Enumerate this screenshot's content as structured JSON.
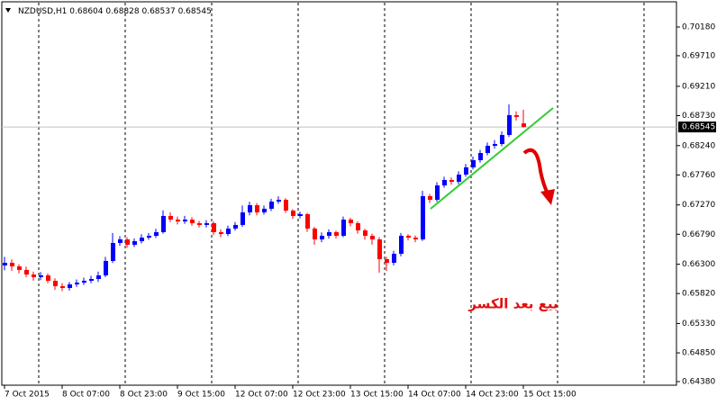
{
  "chart_data": {
    "type": "candlestick",
    "symbol": "NZDUSD,H1",
    "annotation": "بيع بعد الكسر",
    "up_color": "#0000ff",
    "down_color": "#ff0000",
    "grid": true,
    "ylim": [
      0.64321,
      0.70548
    ],
    "yticks": [
      {
        "value": 0.7018,
        "label": "0.70180"
      },
      {
        "value": 0.6971,
        "label": "0.69710"
      },
      {
        "value": 0.6921,
        "label": "0.69210"
      },
      {
        "value": 0.6873,
        "label": "0.68730"
      },
      {
        "value": 0.6824,
        "label": "0.68240"
      },
      {
        "value": 0.6776,
        "label": "0.67760"
      },
      {
        "value": 0.6727,
        "label": "0.67270"
      },
      {
        "value": 0.6679,
        "label": "0.66790"
      },
      {
        "value": 0.663,
        "label": "0.66300"
      },
      {
        "value": 0.6582,
        "label": "0.65820"
      },
      {
        "value": 0.6533,
        "label": "0.65330"
      },
      {
        "value": 0.6485,
        "label": "0.64850"
      },
      {
        "value": 0.6438,
        "label": "0.64380"
      }
    ],
    "categories": [
      "7 Oct 2015",
      null,
      null,
      null,
      null,
      null,
      null,
      null,
      "8 Oct 07:00",
      null,
      null,
      null,
      null,
      null,
      null,
      null,
      "8 Oct 23:00",
      null,
      null,
      null,
      null,
      null,
      null,
      null,
      "9 Oct 15:00",
      null,
      null,
      null,
      null,
      null,
      null,
      null,
      "12 Oct 07:00",
      null,
      null,
      null,
      null,
      null,
      null,
      null,
      "12 Oct 23:00",
      null,
      null,
      null,
      null,
      null,
      null,
      null,
      "13 Oct 15:00",
      null,
      null,
      null,
      null,
      null,
      null,
      null,
      "14 Oct 07:00",
      null,
      null,
      null,
      null,
      null,
      null,
      null,
      "14 Oct 23:00",
      null,
      null,
      null,
      null,
      null,
      null,
      null,
      "15 Oct 15:00"
    ],
    "open": [
      0.6628,
      0.66323,
      0.66265,
      0.66206,
      0.66132,
      0.66088,
      0.66117,
      0.66029,
      0.65941,
      0.65911,
      0.6597,
      0.65999,
      0.66029,
      0.66058,
      0.66117,
      0.66353,
      0.66647,
      0.66706,
      0.66618,
      0.66677,
      0.66735,
      0.66765,
      0.66824,
      0.67089,
      0.6703,
      0.67,
      0.6703,
      0.66971,
      0.66942,
      0.66971,
      0.66824,
      0.66794,
      0.66883,
      0.66942,
      0.67148,
      0.67265,
      0.67148,
      0.67207,
      0.67324,
      0.67354,
      0.67177,
      0.67089,
      0.67118,
      0.66883,
      0.66706,
      0.66765,
      0.66824,
      0.66765,
      0.6703,
      0.66971,
      0.66853,
      0.66765,
      0.66706,
      0.66382,
      0.66323,
      0.66471,
      0.66765,
      0.66735,
      0.66706,
      0.67413,
      0.67354,
      0.67589,
      0.67678,
      0.67648,
      0.67766,
      0.67884,
      0.68001,
      0.68119,
      0.68237,
      0.68266,
      0.68414,
      0.68737,
      0.68604
    ],
    "high": [
      0.6642,
      0.6638,
      0.663,
      0.6626,
      0.6618,
      0.6617,
      0.6615,
      0.6607,
      0.6599,
      0.6601,
      0.6605,
      0.6608,
      0.6611,
      0.6618,
      0.6642,
      0.6681,
      0.6676,
      0.6674,
      0.6672,
      0.6679,
      0.6681,
      0.6688,
      0.6718,
      0.6715,
      0.6708,
      0.6709,
      0.6707,
      0.6701,
      0.6702,
      0.67,
      0.6687,
      0.6693,
      0.6699,
      0.6726,
      0.6732,
      0.673,
      0.6726,
      0.6737,
      0.6741,
      0.6738,
      0.672,
      0.6716,
      0.6714,
      0.6691,
      0.6682,
      0.6687,
      0.6685,
      0.6708,
      0.6706,
      0.67,
      0.6688,
      0.668,
      0.6674,
      0.6642,
      0.6652,
      0.6681,
      0.6679,
      0.6677,
      0.675,
      0.6745,
      0.6764,
      0.6773,
      0.6772,
      0.6782,
      0.6794,
      0.6806,
      0.6817,
      0.6829,
      0.6833,
      0.6847,
      0.68914,
      0.688,
      0.68828
    ],
    "low": [
      0.662,
      0.6619,
      0.6615,
      0.6609,
      0.6603,
      0.6604,
      0.6599,
      0.6588,
      0.6586,
      0.6587,
      0.6593,
      0.6596,
      0.6599,
      0.6601,
      0.6609,
      0.6632,
      0.666,
      0.6657,
      0.6658,
      0.6664,
      0.667,
      0.6673,
      0.668,
      0.6699,
      0.6695,
      0.6696,
      0.6693,
      0.669,
      0.669,
      0.6678,
      0.6674,
      0.6676,
      0.6685,
      0.6691,
      0.671,
      0.671,
      0.6711,
      0.6717,
      0.6729,
      0.6714,
      0.6704,
      0.6705,
      0.6683,
      0.6662,
      0.6666,
      0.6672,
      0.6672,
      0.6674,
      0.6692,
      0.668,
      0.667,
      0.6662,
      0.66161,
      0.6619,
      0.6628,
      0.6643,
      0.6669,
      0.6666,
      0.6668,
      0.673,
      0.6732,
      0.6755,
      0.676,
      0.6761,
      0.6773,
      0.6785,
      0.6796,
      0.6808,
      0.6819,
      0.6823,
      0.6838,
      0.6865,
      0.68537
    ],
    "close": [
      0.66323,
      0.66265,
      0.66206,
      0.66132,
      0.66088,
      0.66117,
      0.66029,
      0.65941,
      0.65911,
      0.6597,
      0.65999,
      0.66029,
      0.66058,
      0.66117,
      0.66353,
      0.66647,
      0.66706,
      0.66618,
      0.66677,
      0.66735,
      0.66765,
      0.66824,
      0.67089,
      0.6703,
      0.67,
      0.6703,
      0.66971,
      0.66942,
      0.66971,
      0.66824,
      0.66794,
      0.66883,
      0.66942,
      0.67148,
      0.67265,
      0.67148,
      0.67207,
      0.67324,
      0.67354,
      0.67177,
      0.67089,
      0.67118,
      0.66883,
      0.66706,
      0.66765,
      0.66824,
      0.66765,
      0.6703,
      0.66971,
      0.66853,
      0.66765,
      0.66706,
      0.66382,
      0.66323,
      0.66471,
      0.66765,
      0.66735,
      0.66706,
      0.67413,
      0.67354,
      0.67589,
      0.67678,
      0.67648,
      0.67766,
      0.67884,
      0.68001,
      0.68119,
      0.68237,
      0.68266,
      0.68414,
      0.68737,
      0.68708,
      0.68545
    ]
  }
}
